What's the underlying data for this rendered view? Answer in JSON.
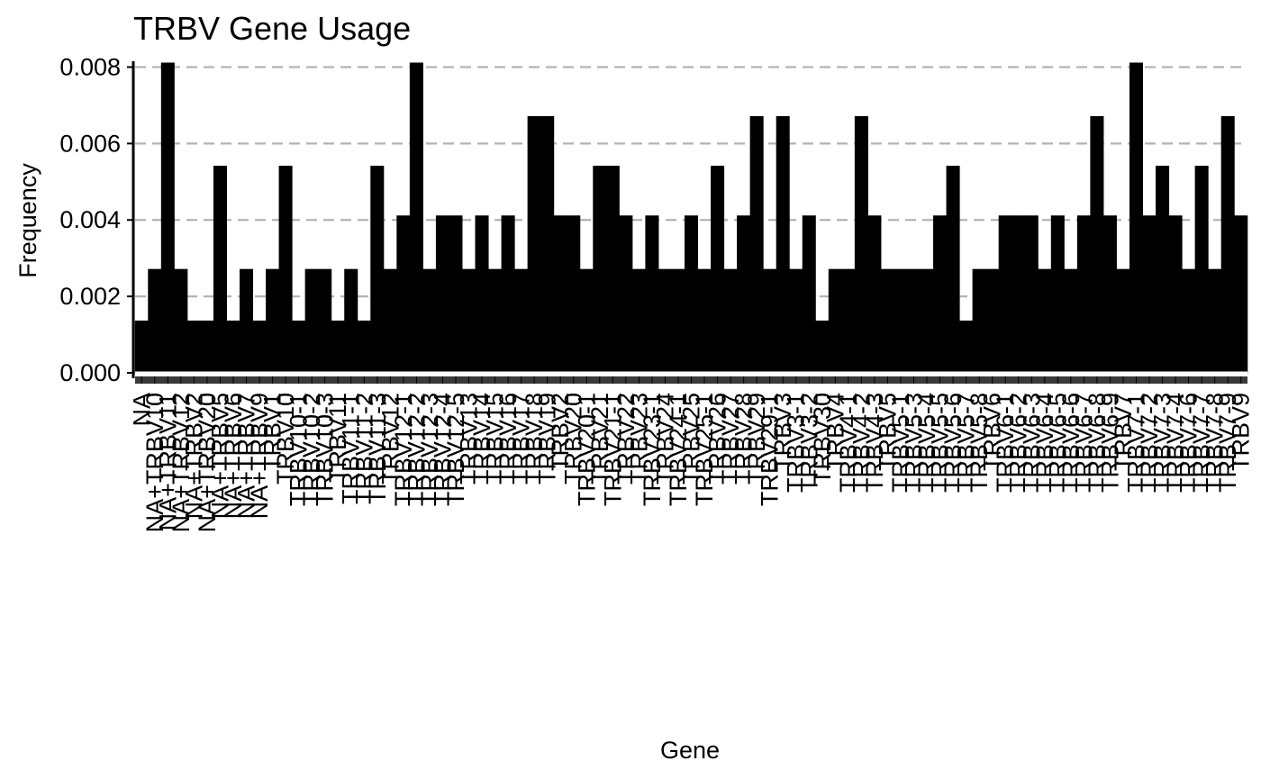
{
  "chart_data": {
    "type": "bar",
    "title": "TRBV Gene Usage",
    "xlabel": "Gene",
    "ylabel": "Frequency",
    "ylim": [
      0,
      0.0082
    ],
    "y_ticks": [
      "0.000",
      "0.002",
      "0.004",
      "0.006",
      "0.008"
    ],
    "y_tick_values": [
      0,
      0.002,
      0.004,
      0.006,
      0.008
    ],
    "grid": "horizontal dashed",
    "legend": "none",
    "bar_color": "#000000",
    "grid_color": "#b3b3b3",
    "categories": [
      "NA",
      "NA+TRBV10",
      "NA+TRBV11",
      "NA+TRBV12",
      "NA+TRBV2",
      "NA+TRBV20",
      "NA+TRBV5",
      "NA+TRBV6",
      "NA+TRBV7",
      "NA+TRBV9",
      "TRBV1",
      "TRBV10",
      "TRBV10-1",
      "TRBV10-2",
      "TRBV10-3",
      "TRBV11",
      "TRBV11-1",
      "TRBV11-2",
      "TRBV11-3",
      "TRBV12",
      "TRBV12-1",
      "TRBV12-2",
      "TRBV12-3",
      "TRBV12-4",
      "TRBV12-5",
      "TRBV13",
      "TRBV14",
      "TRBV15",
      "TRBV16",
      "TRBV17",
      "TRBV18",
      "TRBV19",
      "TRBV2",
      "TRBV20",
      "TRBV20-1",
      "TRBV21",
      "TRBV21-1",
      "TRBV22",
      "TRBV23",
      "TRBV23-1",
      "TRBV24",
      "TRBV24-1",
      "TRBV25",
      "TRBV25-1",
      "TRBV26",
      "TRBV27",
      "TRBV28",
      "TRBV29",
      "TRBV29-1",
      "TRBV3",
      "TRBV3-1",
      "TRBV3-2",
      "TRBV30",
      "TRBV4",
      "TRBV4-1",
      "TRBV4-2",
      "TRBV4-3",
      "TRBV5",
      "TRBV5-1",
      "TRBV5-3",
      "TRBV5-4",
      "TRBV5-5",
      "TRBV5-6",
      "TRBV5-7",
      "TRBV5-8",
      "TRBV6",
      "TRBV6-1",
      "TRBV6-2",
      "TRBV6-3",
      "TRBV6-4",
      "TRBV6-5",
      "TRBV6-6",
      "TRBV6-7",
      "TRBV6-8",
      "TRBV6-9",
      "TRBV7",
      "TRBV7-1",
      "TRBV7-2",
      "TRBV7-3",
      "TRBV7-4",
      "TRBV7-6",
      "TRBV7-7",
      "TRBV7-8",
      "TRBV7-9",
      "TRBV9"
    ],
    "values": [
      0.00135,
      0.0027,
      0.0081,
      0.0027,
      0.00135,
      0.00135,
      0.0054,
      0.00135,
      0.0027,
      0.00135,
      0.0027,
      0.0054,
      0.00135,
      0.0027,
      0.0027,
      0.00135,
      0.0027,
      0.00135,
      0.0054,
      0.0027,
      0.0041,
      0.0081,
      0.0027,
      0.0041,
      0.0041,
      0.0027,
      0.0041,
      0.0027,
      0.0041,
      0.0027,
      0.0067,
      0.0067,
      0.0041,
      0.0041,
      0.0027,
      0.0054,
      0.0054,
      0.0041,
      0.0027,
      0.0041,
      0.0027,
      0.0027,
      0.0041,
      0.0027,
      0.0054,
      0.0027,
      0.0041,
      0.0067,
      0.0027,
      0.0067,
      0.0027,
      0.0041,
      0.00135,
      0.0027,
      0.0027,
      0.0067,
      0.0041,
      0.0027,
      0.0027,
      0.0027,
      0.0027,
      0.0041,
      0.0054,
      0.00135,
      0.0027,
      0.0027,
      0.0041,
      0.0041,
      0.0041,
      0.0027,
      0.0041,
      0.0027,
      0.0041,
      0.0067,
      0.0041,
      0.0027,
      0.0081,
      0.0041,
      0.0054,
      0.0041,
      0.0027,
      0.0054,
      0.0027,
      0.0067,
      0.0041
    ]
  }
}
